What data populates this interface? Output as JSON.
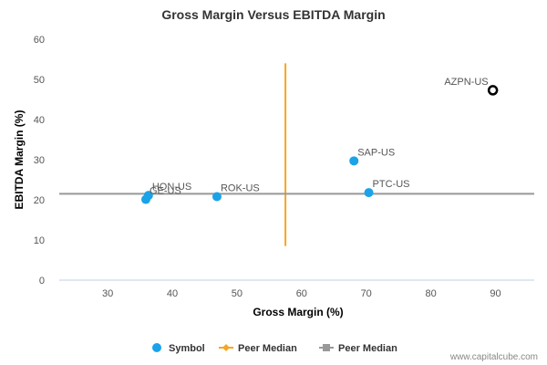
{
  "chart_data": {
    "type": "scatter",
    "title": "Gross Margin Versus EBITDA Margin",
    "xlabel": "Gross Margin (%)",
    "ylabel": "EBITDA Margin (%)",
    "xlim": [
      22.5,
      96
    ],
    "ylim": [
      0,
      60
    ],
    "x_ticks": [
      30,
      40,
      50,
      60,
      70,
      80,
      90
    ],
    "y_ticks": [
      0,
      10,
      20,
      30,
      40,
      50,
      60
    ],
    "grid": false,
    "legend_position": "bottom-center",
    "points": [
      {
        "label": "AZPN-US",
        "x": 89.6,
        "y": 47.3,
        "highlight": true
      },
      {
        "label": "SAP-US",
        "x": 68.1,
        "y": 29.7
      },
      {
        "label": "PTC-US",
        "x": 70.4,
        "y": 21.8
      },
      {
        "label": "ROK-US",
        "x": 46.9,
        "y": 20.8
      },
      {
        "label": "HON-US",
        "x": 36.3,
        "y": 21.1
      },
      {
        "label": "GE-US",
        "x": 35.9,
        "y": 20.1
      }
    ],
    "peer_median_x": 57.5,
    "peer_median_y": 21.5,
    "colors": {
      "symbol": "#1aa3e8",
      "vertical_median": "#f5a623",
      "horizontal_median": "#999999",
      "highlight_stroke": "#000000"
    },
    "legend": [
      {
        "label": "Symbol",
        "kind": "dot",
        "color": "#1aa3e8"
      },
      {
        "label": "Peer Median",
        "kind": "line-diamond",
        "color": "#f5a623"
      },
      {
        "label": "Peer Median",
        "kind": "line-square",
        "color": "#999999"
      }
    ]
  },
  "credit": "www.capitalcube.com"
}
